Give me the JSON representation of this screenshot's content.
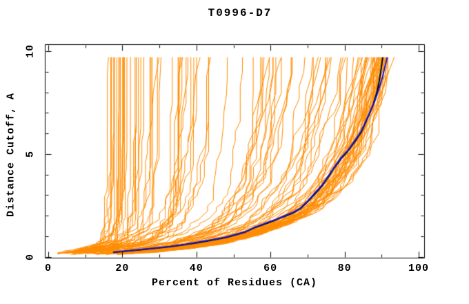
{
  "chart_data": {
    "type": "line",
    "title": "T0996-D7",
    "xlabel": "Percent of Residues (CA)",
    "ylabel": "Distance Cutoff, A",
    "xlim": [
      -1,
      102
    ],
    "ylim": [
      0,
      10.35
    ],
    "grid": false,
    "legend": "none",
    "x_major_ticks": [
      {
        "value": 0,
        "label": "0"
      },
      {
        "value": 20,
        "label": "20"
      },
      {
        "value": 40,
        "label": "40"
      },
      {
        "value": 60,
        "label": "60"
      },
      {
        "value": 80,
        "label": "80"
      },
      {
        "value": 100,
        "label": "100"
      }
    ],
    "x_minor_ticks": [
      10,
      30,
      50,
      70,
      90
    ],
    "y_major_ticks": [
      {
        "value": 0,
        "label": "0"
      },
      {
        "value": 5,
        "label": "5"
      },
      {
        "value": 10,
        "label": "10"
      }
    ],
    "y_minor_ticks": [
      1,
      2,
      3,
      4,
      6,
      7,
      8,
      9
    ],
    "colors": {
      "ensemble": "#ff8c00",
      "highlight_blue": "#1616c8",
      "highlight_black": "#000000",
      "axis": "#000000",
      "background": "#ffffff"
    },
    "series": [
      {
        "name": "server-models-ensemble",
        "color": "#ff8c00",
        "style": "jagged-cumulative",
        "count": 115,
        "seed": 1337,
        "top_cutoff": 9.7,
        "start_cutoff_range": [
          0.1,
          0.35
        ],
        "start_percent_range": [
          3.5,
          8
        ],
        "final_percent_range": [
          12,
          95
        ],
        "clusters": [
          {
            "count": 30,
            "u_min": 0.02,
            "u_max": 0.18,
            "skew": 1.4
          },
          {
            "count": 32,
            "u_min": 0.18,
            "u_max": 0.62,
            "skew": 1.0
          },
          {
            "count": 53,
            "u_min": 0.62,
            "u_max": 1.0,
            "skew": 0.6
          }
        ]
      },
      {
        "name": "model-black",
        "color": "#000000",
        "points_percent_cutoff": [
          [
            17.5,
            0.21
          ],
          [
            21,
            0.27
          ],
          [
            25,
            0.34
          ],
          [
            29,
            0.41
          ],
          [
            33,
            0.49
          ],
          [
            37,
            0.59
          ],
          [
            41,
            0.7
          ],
          [
            45,
            0.83
          ],
          [
            48,
            0.93
          ],
          [
            50,
            1.03
          ],
          [
            53,
            1.18
          ],
          [
            56,
            1.43
          ],
          [
            59,
            1.62
          ],
          [
            62,
            1.83
          ],
          [
            64,
            1.97
          ],
          [
            66,
            2.12
          ],
          [
            68,
            2.32
          ],
          [
            70,
            2.67
          ],
          [
            72,
            3.05
          ],
          [
            74,
            3.46
          ],
          [
            75.5,
            3.85
          ],
          [
            77,
            4.26
          ],
          [
            79,
            4.75
          ],
          [
            81,
            5.16
          ],
          [
            83,
            5.65
          ],
          [
            84.5,
            6.06
          ],
          [
            86,
            6.65
          ],
          [
            87,
            7.06
          ],
          [
            87.8,
            7.45
          ],
          [
            88.4,
            7.8
          ],
          [
            88.8,
            8.05
          ],
          [
            89.3,
            8.5
          ],
          [
            89.7,
            8.95
          ],
          [
            90.0,
            9.3
          ],
          [
            90.3,
            9.7
          ]
        ]
      },
      {
        "name": "model-blue",
        "color": "#1616c8",
        "points_percent_cutoff": [
          [
            17.5,
            0.22
          ],
          [
            21,
            0.28
          ],
          [
            25,
            0.35
          ],
          [
            29,
            0.42
          ],
          [
            33,
            0.5
          ],
          [
            37,
            0.6
          ],
          [
            41,
            0.72
          ],
          [
            45,
            0.85
          ],
          [
            48,
            0.95
          ],
          [
            50,
            1.05
          ],
          [
            53,
            1.2
          ],
          [
            56,
            1.45
          ],
          [
            59,
            1.65
          ],
          [
            62,
            1.85
          ],
          [
            64,
            2.0
          ],
          [
            66,
            2.15
          ],
          [
            68,
            2.35
          ],
          [
            70,
            2.7
          ],
          [
            72,
            3.1
          ],
          [
            74,
            3.5
          ],
          [
            75.5,
            3.9
          ],
          [
            77,
            4.3
          ],
          [
            79,
            4.8
          ],
          [
            81,
            5.2
          ],
          [
            83,
            5.7
          ],
          [
            84.5,
            6.1
          ],
          [
            86,
            6.7
          ],
          [
            87,
            7.1
          ],
          [
            88,
            7.5
          ],
          [
            88.8,
            7.9
          ],
          [
            89.5,
            8.3
          ],
          [
            90.2,
            8.7
          ],
          [
            90.7,
            9.1
          ],
          [
            91.2,
            9.45
          ],
          [
            91.5,
            9.7
          ]
        ]
      }
    ]
  }
}
